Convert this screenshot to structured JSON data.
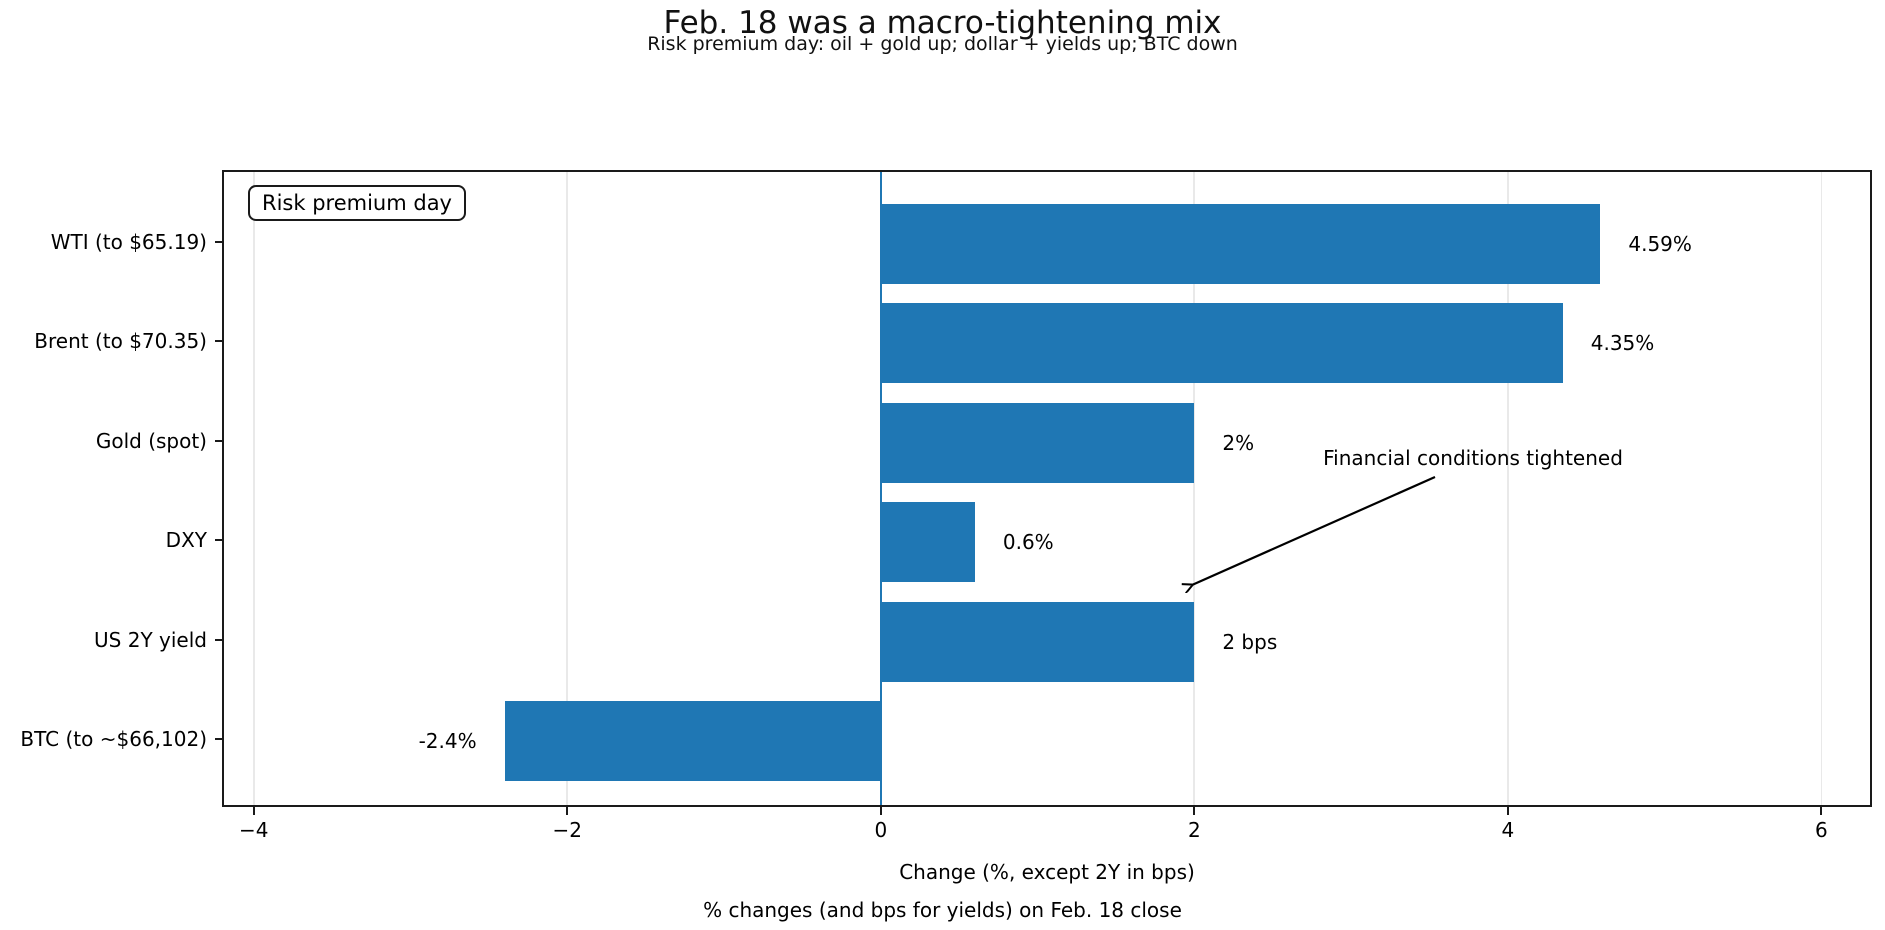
{
  "chart_data": {
    "type": "bar",
    "orientation": "horizontal",
    "title": "Feb. 18 was a macro-tightening mix",
    "subtitle": "Risk premium day: oil + gold up; dollar + yields up; BTC down",
    "xlabel": "Change (%, except 2Y in bps)",
    "caption": "% changes (and bps for yields) on Feb. 18 close",
    "inset_label": "Risk premium day",
    "annotation": {
      "text": "Financial conditions tightened"
    },
    "categories": [
      "WTI (to $65.19)",
      "Brent (to $70.35)",
      "Gold (spot)",
      "DXY",
      "US 2Y yield",
      "BTC (to ~$66,102)"
    ],
    "values": [
      4.59,
      4.35,
      2.0,
      0.6,
      2.0,
      -2.4
    ],
    "value_labels": [
      "4.59%",
      "4.35%",
      "2%",
      "0.6%",
      "2 bps",
      "-2.4%"
    ],
    "x_ticks": [
      -4,
      -2,
      0,
      2,
      4,
      6
    ],
    "x_tick_labels": [
      "−4",
      "−2",
      "0",
      "2",
      "4",
      "6"
    ],
    "xlim": [
      -4.19,
      6.31
    ],
    "grid": true,
    "zero_line": true,
    "colors": {
      "bar": "#1f77b4",
      "zero_line": "#1f77b4",
      "grid": "#e9e9e9",
      "text": "#000000",
      "spine": "#1a1a1a"
    }
  }
}
